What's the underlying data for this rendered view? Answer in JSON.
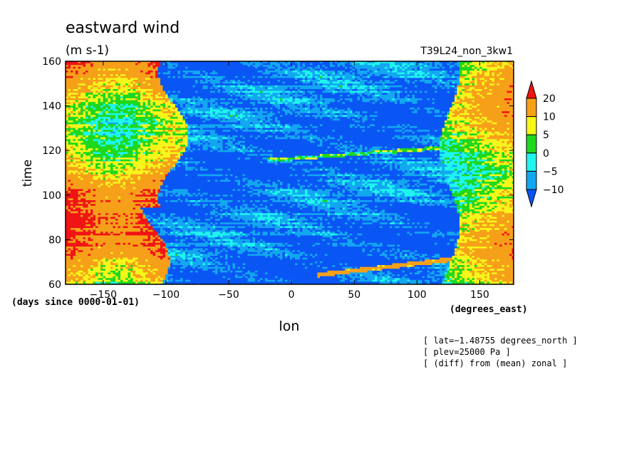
{
  "chart_data": {
    "type": "heatmap",
    "title": "eastward wind",
    "units": "(m s-1)",
    "run_label": "T39L24_non_3kw1",
    "xlabel": "lon",
    "x_units": "(degrees_east)",
    "ylabel": "time",
    "y_units": "(days since 0000-01-01)",
    "xlim": [
      -180,
      177
    ],
    "ylim": [
      60,
      160
    ],
    "x_ticks": [
      -150,
      -100,
      -50,
      0,
      50,
      100,
      150
    ],
    "y_ticks": [
      60,
      80,
      100,
      120,
      140,
      160
    ],
    "x_tick_labels": [
      "−150",
      "−100",
      "−50",
      "0",
      "50",
      "100",
      "150"
    ],
    "y_tick_labels": [
      "60",
      "80",
      "100",
      "120",
      "140",
      "160"
    ],
    "notes": [
      "[ lat=−1.48755 degrees_north ]",
      "[ plev=25000 Pa ]",
      "[ (diff) from (mean) zonal ]"
    ],
    "colorbar": {
      "levels": [
        -10,
        -5,
        0,
        5,
        10,
        20
      ],
      "labels": [
        "20",
        "10",
        "5",
        "0",
        "−5",
        "−10"
      ],
      "colors": [
        "#0a56f5",
        "#12a7f0",
        "#1ff5f0",
        "#1ed81e",
        "#f6f61a",
        "#f6a01a",
        "#f01414"
      ]
    }
  }
}
